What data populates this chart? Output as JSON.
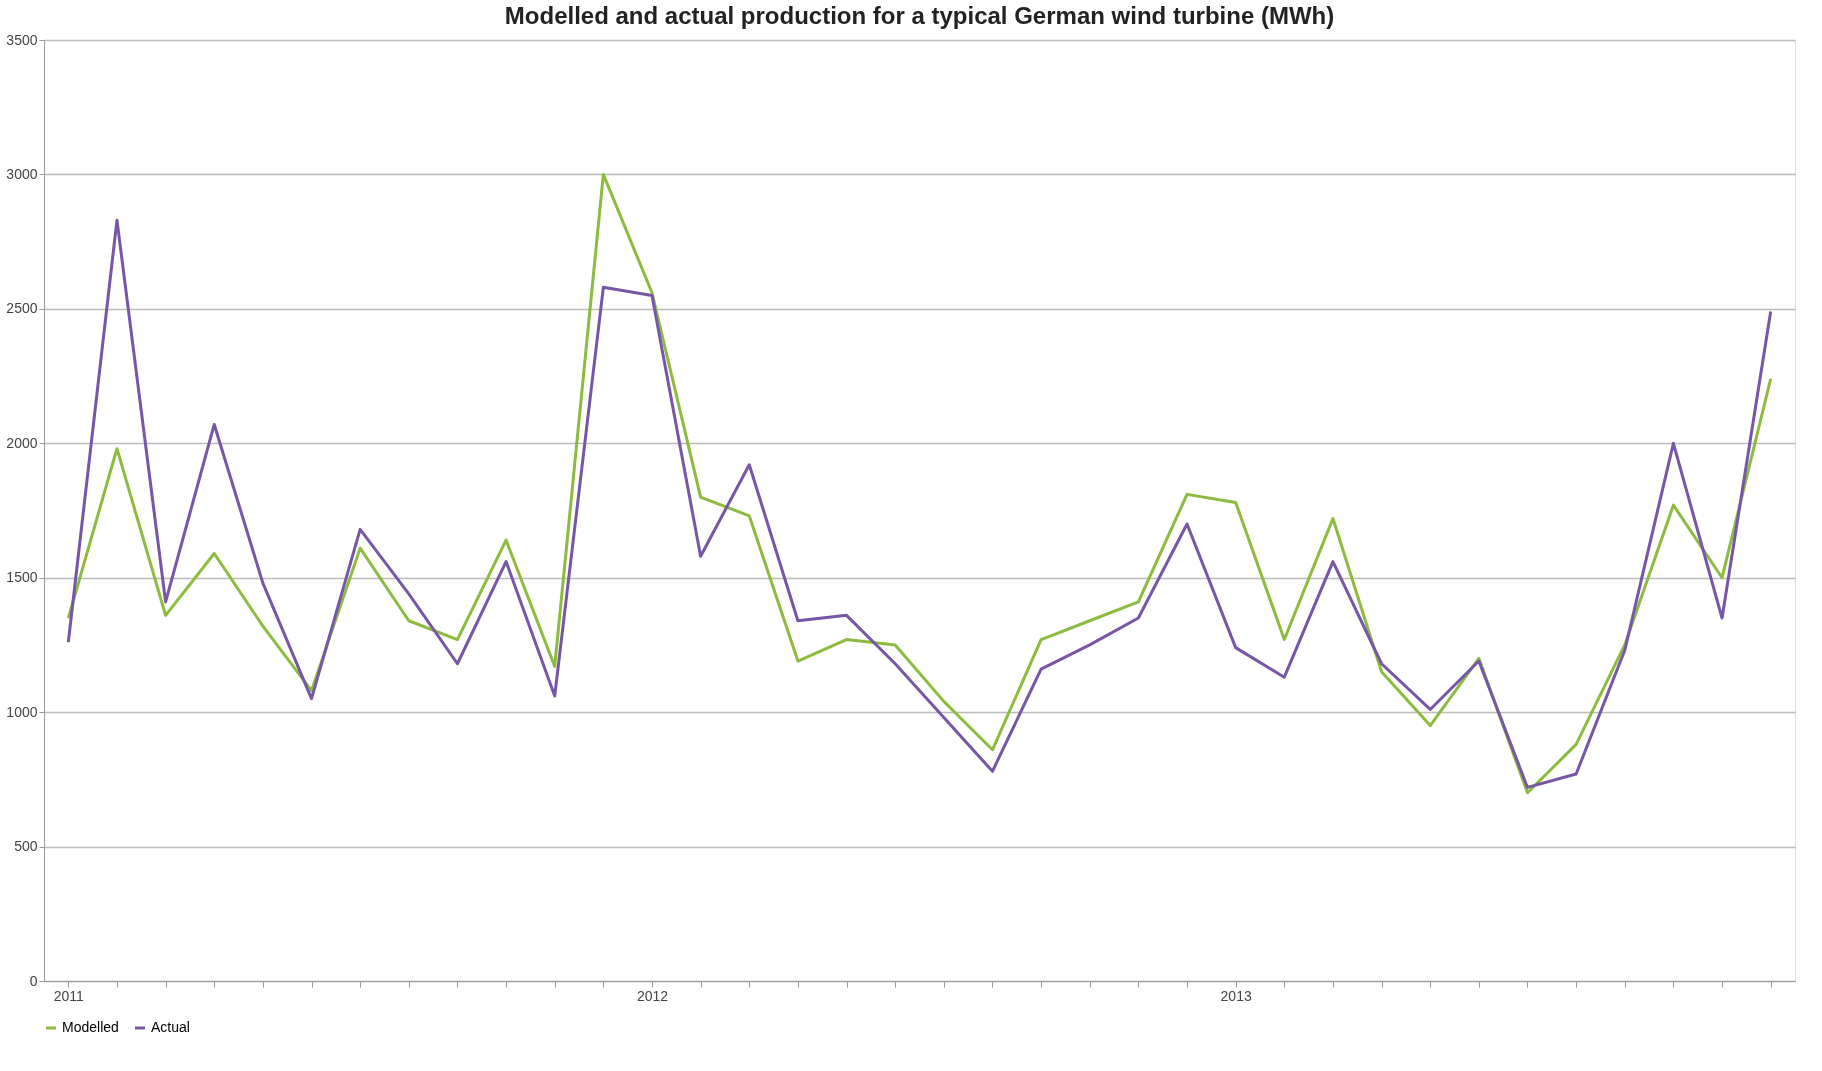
{
  "chart_data": {
    "type": "line",
    "title": "Modelled and actual production for a typical German wind turbine (MWh)",
    "categories": [
      "2011",
      null,
      null,
      null,
      null,
      null,
      null,
      null,
      null,
      null,
      null,
      null,
      "2012",
      null,
      null,
      null,
      null,
      null,
      null,
      null,
      null,
      null,
      null,
      null,
      "2013",
      null,
      null,
      null,
      null,
      null,
      null,
      null,
      null,
      null,
      null,
      null
    ],
    "series": [
      {
        "name": "Modelled",
        "color": "#8dbb3f",
        "values": [
          1350,
          1980,
          1360,
          1590,
          1320,
          1080,
          1610,
          1340,
          1270,
          1640,
          1170,
          3000,
          2560,
          1800,
          1730,
          1190,
          1270,
          1250,
          1040,
          860,
          1270,
          1340,
          1410,
          1810,
          1780,
          1270,
          1720,
          1150,
          950,
          1200,
          700,
          880,
          1250,
          1770,
          1500,
          2240
        ]
      },
      {
        "name": "Actual",
        "color": "#7656a6",
        "values": [
          1260,
          2830,
          1410,
          2070,
          1480,
          1050,
          1680,
          1440,
          1180,
          1560,
          1060,
          2580,
          2550,
          1580,
          1920,
          1340,
          1360,
          1180,
          980,
          780,
          1160,
          1250,
          1350,
          1700,
          1240,
          1130,
          1560,
          1180,
          1010,
          1190,
          720,
          770,
          1230,
          2000,
          1350,
          2490
        ]
      }
    ],
    "ylim": [
      0,
      3500
    ],
    "yticks": [
      0,
      500,
      1000,
      1500,
      2000,
      2500,
      3000,
      3500
    ],
    "grid": "y",
    "legend": "bottom",
    "marker": "none",
    "line_style": "solid"
  }
}
